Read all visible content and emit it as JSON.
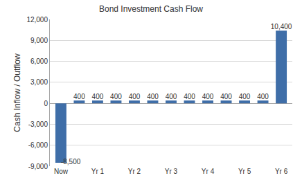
{
  "chart_data": {
    "type": "bar",
    "title": "Bond Investment Cash Flow",
    "y_label": "Cash Inflow / Outflow",
    "categories": [
      "Now",
      null,
      "Yr 1",
      null,
      "Yr 2",
      null,
      "Yr 3",
      null,
      "Yr 4",
      null,
      "Yr 5",
      null,
      "Yr 6"
    ],
    "values": [
      -8500,
      400,
      400,
      400,
      400,
      400,
      400,
      400,
      400,
      400,
      400,
      400,
      10400
    ],
    "value_labels": [
      "-8,500",
      "400",
      "400",
      "400",
      "400",
      "400",
      "400",
      "400",
      "400",
      "400",
      "400",
      "400",
      "10,400"
    ],
    "data_labels": true,
    "color": "#3f6ea8",
    "ylim": [
      -9000,
      12000
    ],
    "yticks": [
      {
        "value": -9000,
        "label": "-9,000"
      },
      {
        "value": -6000,
        "label": "-6,000"
      },
      {
        "value": -3000,
        "label": "-3,000"
      },
      0,
      {
        "value": 3000,
        "label": "3,000"
      },
      {
        "value": 6000,
        "label": "6,000"
      },
      {
        "value": 9000,
        "label": "9,000"
      },
      {
        "value": 12000,
        "label": "12,000"
      }
    ],
    "grid": true
  }
}
